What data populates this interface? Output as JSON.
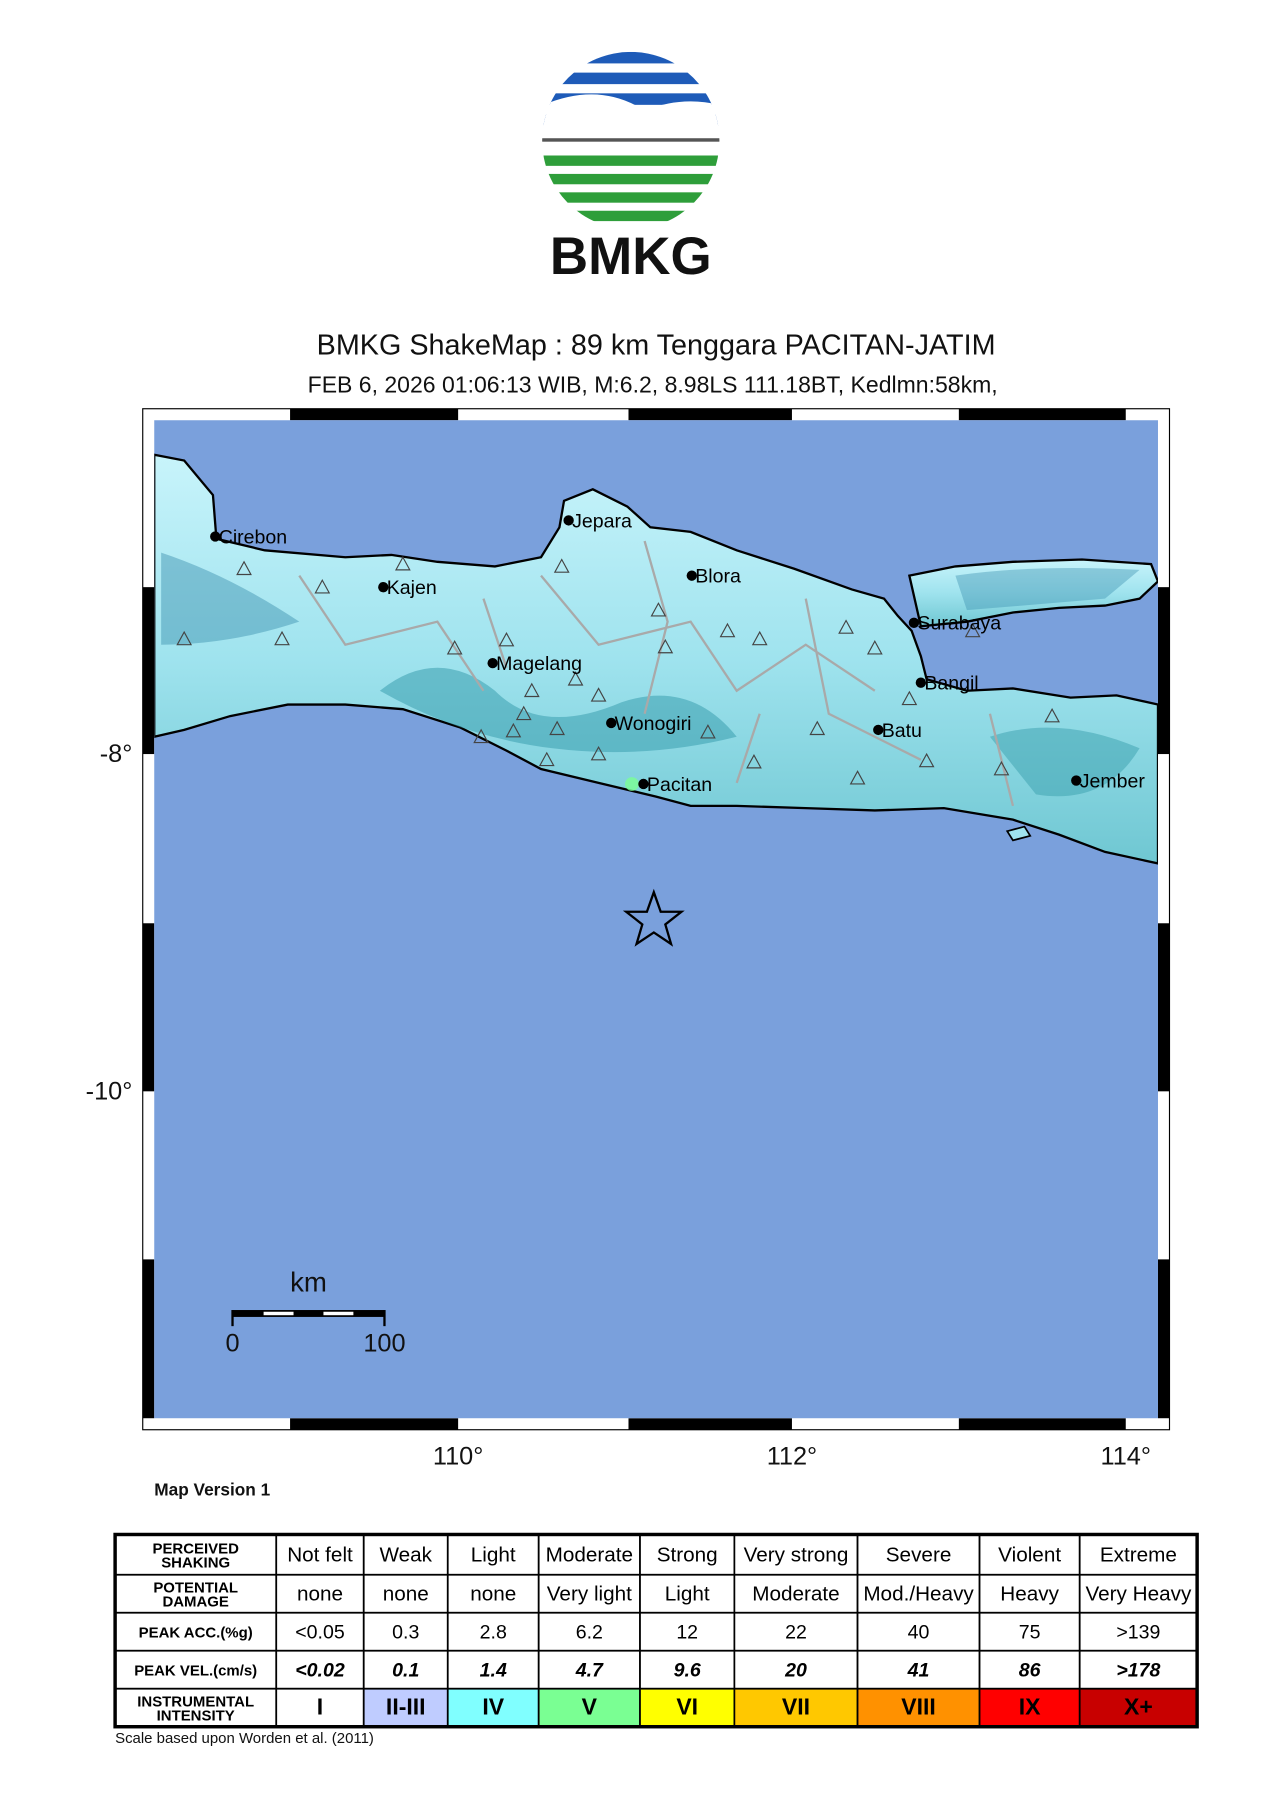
{
  "logo": {
    "text": "BMKG"
  },
  "header": {
    "title": "BMKG ShakeMap : 89 km Tenggara PACITAN-JATIM",
    "subtitle": "FEB 6, 2026 01:06:13 WIB, M:6.2, 8.98LS 111.18BT, Kedlmn:58km,"
  },
  "map": {
    "cities": [
      "Cirebon",
      "Kajen",
      "Jepara",
      "Blora",
      "Magelang",
      "Wonogiri",
      "Pacitan",
      "Surabaya",
      "Bangil",
      "Batu",
      "Jember"
    ],
    "lat_labels": [
      "-8°",
      "-10°"
    ],
    "lon_labels": [
      "110°",
      "112°",
      "114°"
    ],
    "scale_bar": {
      "unit": "km",
      "labels": [
        "0",
        "100"
      ]
    },
    "version": "Map Version 1"
  },
  "legend": {
    "rows": [
      {
        "label": [
          "PERCEIVED",
          "SHAKING"
        ],
        "cells": [
          "Not felt",
          "Weak",
          "Light",
          "Moderate",
          "Strong",
          "Very strong",
          "Severe",
          "Violent",
          "Extreme"
        ]
      },
      {
        "label": [
          "POTENTIAL",
          "DAMAGE"
        ],
        "cells": [
          "none",
          "none",
          "none",
          "Very light",
          "Light",
          "Moderate",
          "Mod./Heavy",
          "Heavy",
          "Very Heavy"
        ]
      },
      {
        "label": [
          "PEAK ACC.(%g)"
        ],
        "cells": [
          "<0.05",
          "0.3",
          "2.8",
          "6.2",
          "12",
          "22",
          "40",
          "75",
          ">139"
        ]
      },
      {
        "label": [
          "PEAK VEL.(cm/s)"
        ],
        "cells": [
          "<0.02",
          "0.1",
          "1.4",
          "4.7",
          "9.6",
          "20",
          "41",
          "86",
          ">178"
        ]
      },
      {
        "label": [
          "INSTRUMENTAL",
          "INTENSITY"
        ],
        "cells": [
          "I",
          "II-III",
          "IV",
          "V",
          "VI",
          "VII",
          "VIII",
          "IX",
          "X+"
        ]
      }
    ],
    "intensity_colors": [
      "#ffffff",
      "#bfccff",
      "#80ffff",
      "#7aff93",
      "#ffff00",
      "#ffc800",
      "#ff9100",
      "#ff0000",
      "#c80000"
    ]
  },
  "footer": "Scale based upon Worden et al. (2011)"
}
